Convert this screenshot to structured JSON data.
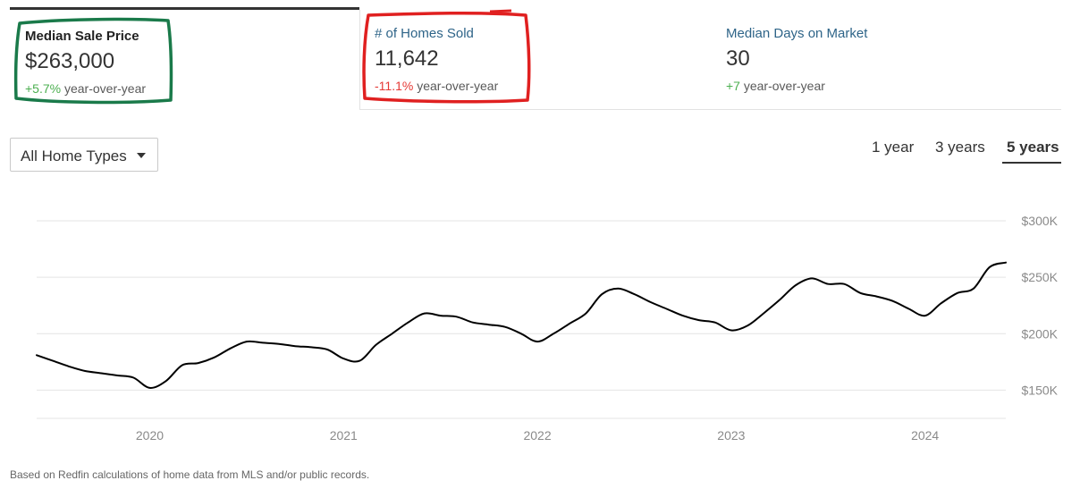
{
  "metrics": [
    {
      "label": "Median Sale Price",
      "value": "$263,000",
      "change": "+5.7%",
      "change_suffix": " year-over-year",
      "direction": "up",
      "active": true
    },
    {
      "label": "# of Homes Sold",
      "value": "11,642",
      "change": "-11.1%",
      "change_suffix": " year-over-year",
      "direction": "down",
      "active": false
    },
    {
      "label": "Median Days on Market",
      "value": "30",
      "change": "+7",
      "change_suffix": " year-over-year",
      "direction": "up",
      "active": false
    }
  ],
  "annotations": {
    "green_circle_color": "#1a7a4a",
    "red_circle_color": "#e02020"
  },
  "home_type_select": {
    "value": "All Home Types",
    "icon": "caret-down-icon"
  },
  "time_ranges": [
    {
      "label": "1 year",
      "selected": false
    },
    {
      "label": "3 years",
      "selected": false
    },
    {
      "label": "5 years",
      "selected": true
    }
  ],
  "chart_data": {
    "type": "line",
    "title": "",
    "xlabel": "",
    "ylabel": "",
    "x_ticks": [
      "2020",
      "2021",
      "2022",
      "2023",
      "2024"
    ],
    "y_ticks": [
      "$150K",
      "$200K",
      "$250K",
      "$300K"
    ],
    "ylim": [
      125000,
      300000
    ],
    "xlim": [
      "2019-06",
      "2024-06"
    ],
    "grid": true,
    "series": [
      {
        "color": "#000000",
        "x": [
          "2019-06",
          "2019-07",
          "2019-08",
          "2019-09",
          "2019-10",
          "2019-11",
          "2019-12",
          "2020-01",
          "2020-02",
          "2020-03",
          "2020-04",
          "2020-05",
          "2020-06",
          "2020-07",
          "2020-08",
          "2020-09",
          "2020-10",
          "2020-11",
          "2020-12",
          "2021-01",
          "2021-02",
          "2021-03",
          "2021-04",
          "2021-05",
          "2021-06",
          "2021-07",
          "2021-08",
          "2021-09",
          "2021-10",
          "2021-11",
          "2021-12",
          "2022-01",
          "2022-02",
          "2022-03",
          "2022-04",
          "2022-05",
          "2022-06",
          "2022-07",
          "2022-08",
          "2022-09",
          "2022-10",
          "2022-11",
          "2022-12",
          "2023-01",
          "2023-02",
          "2023-03",
          "2023-04",
          "2023-05",
          "2023-06",
          "2023-07",
          "2023-08",
          "2023-09",
          "2023-10",
          "2023-11",
          "2023-12",
          "2024-01",
          "2024-02",
          "2024-03",
          "2024-04",
          "2024-05",
          "2024-06"
        ],
        "values": [
          181000,
          176000,
          171000,
          167000,
          165000,
          163000,
          161000,
          152000,
          158000,
          172000,
          174000,
          179000,
          187000,
          193000,
          192000,
          191000,
          189000,
          188000,
          186000,
          178000,
          176000,
          190000,
          200000,
          210000,
          218000,
          216000,
          215000,
          210000,
          208000,
          206000,
          200000,
          193000,
          200000,
          209000,
          218000,
          235000,
          240000,
          235000,
          228000,
          222000,
          216000,
          212000,
          210000,
          203000,
          207000,
          218000,
          230000,
          243000,
          249000,
          244000,
          244000,
          236000,
          233000,
          229000,
          222000,
          216000,
          227000,
          236000,
          240000,
          259000,
          263000
        ]
      }
    ]
  },
  "footnote": "Based on Redfin calculations of home data from MLS and/or public records."
}
